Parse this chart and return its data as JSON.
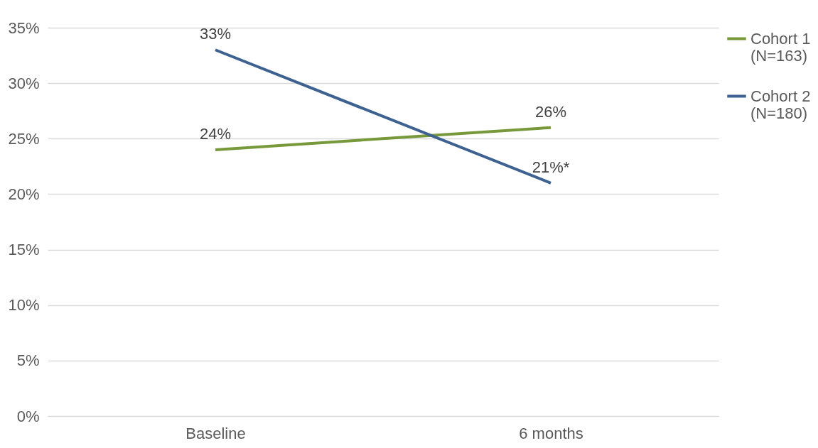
{
  "chart_data": {
    "type": "line",
    "categories": [
      "Baseline",
      "6 months"
    ],
    "series": [
      {
        "name": "Cohort 1 (N=163)",
        "color": "#77993b",
        "values": [
          24,
          26
        ],
        "value_labels": [
          "24%",
          "26%"
        ]
      },
      {
        "name": "Cohort 2 (N=180)",
        "color": "#3d6190",
        "values": [
          33,
          21
        ],
        "value_labels": [
          "33%",
          "21%*"
        ]
      }
    ],
    "ylim": [
      0,
      35
    ],
    "yticks": [
      {
        "value": 0,
        "label": "0%"
      },
      {
        "value": 5,
        "label": "5%"
      },
      {
        "value": 10,
        "label": "10%"
      },
      {
        "value": 15,
        "label": "15%"
      },
      {
        "value": 20,
        "label": "20%"
      },
      {
        "value": 25,
        "label": "25%"
      },
      {
        "value": 30,
        "label": "30%"
      },
      {
        "value": 35,
        "label": "35%"
      }
    ],
    "grid": "y",
    "legend": "right",
    "marker": "none",
    "line_style": "solid"
  }
}
